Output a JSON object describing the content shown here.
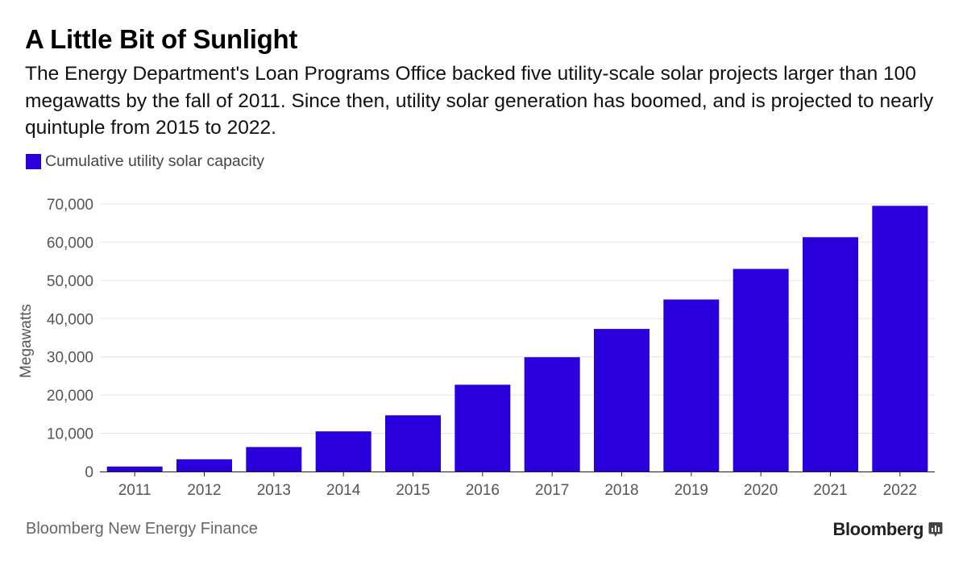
{
  "title": "A Little Bit of Sunlight",
  "subtitle": "The Energy Department's Loan Programs Office backed five utility-scale solar projects larger than 100 megawatts by the fall of 2011. Since then, utility solar generation has boomed, and is projected to nearly quintuple from 2015 to 2022.",
  "source": "Bloomberg New Energy Finance",
  "brand": "Bloomberg",
  "brand_icon": "bloomberg-chart-icon",
  "colors": {
    "bar": "#2a00dc",
    "grid": "#e3e3e3",
    "axis": "#222222",
    "tick_text": "#555555"
  },
  "chart_data": {
    "type": "bar",
    "categories": [
      "2011",
      "2012",
      "2013",
      "2014",
      "2015",
      "2016",
      "2017",
      "2018",
      "2019",
      "2020",
      "2021",
      "2022"
    ],
    "series": [
      {
        "name": "Cumulative utility solar capacity",
        "values": [
          1300,
          3200,
          6400,
          10500,
          14700,
          22700,
          29900,
          37300,
          45000,
          53000,
          61300,
          69500
        ]
      }
    ],
    "title": "",
    "xlabel": "",
    "ylabel": "Megawatts",
    "ylim": [
      0,
      70000
    ],
    "yticks": [
      0,
      10000,
      20000,
      30000,
      40000,
      50000,
      60000,
      70000
    ],
    "ytick_labels": [
      "0",
      "10,000",
      "20,000",
      "30,000",
      "40,000",
      "50,000",
      "60,000",
      "70,000"
    ],
    "grid": true,
    "legend": "top-left"
  }
}
